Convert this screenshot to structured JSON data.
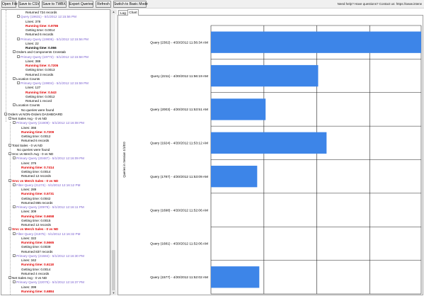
{
  "toolbar": {
    "buttons": [
      "Open File",
      "Save to CSV",
      "Save to TWBX",
      "Export Queries",
      "Refresh",
      "Switch to Basic Mode"
    ],
    "help_text": "Need help? Have questions? Contact us: https://www.interw"
  },
  "tree": {
    "rows": [
      {
        "text": "Returned 724 records",
        "indent": 34,
        "style": "",
        "box": ""
      },
      {
        "text": "Query (19631) - 5/1/2012 12:15:56 PM",
        "indent": 22,
        "style": "q",
        "box": "-"
      },
      {
        "text": "Lines: 378",
        "indent": 34,
        "style": "",
        "box": ""
      },
      {
        "text": "Running time: 0.9786",
        "indent": 34,
        "style": "rt",
        "box": ""
      },
      {
        "text": "Getting time: 0.0014",
        "indent": 34,
        "style": "",
        "box": ""
      },
      {
        "text": "Returned 6 records",
        "indent": 34,
        "style": "",
        "box": ""
      },
      {
        "text": "Primary Query (19806) - 5/1/2012 12:15:56 PM",
        "indent": 22,
        "style": "q",
        "box": "-"
      },
      {
        "text": "Lines: 22",
        "indent": 34,
        "style": "",
        "box": ""
      },
      {
        "text": "Running time: 0.066",
        "indent": 34,
        "style": "rt-black",
        "box": ""
      },
      {
        "text": "Orders and Components Crosstab",
        "indent": 16,
        "style": "",
        "box": "-"
      },
      {
        "text": "Primary Query (19772) - 5/1/2012 12:15:58 PM",
        "indent": 22,
        "style": "q",
        "box": "-"
      },
      {
        "text": "Lines: 388",
        "indent": 34,
        "style": "",
        "box": ""
      },
      {
        "text": "Running time: 0.7205",
        "indent": 34,
        "style": "rt",
        "box": ""
      },
      {
        "text": "Getting time: 0.0013",
        "indent": 34,
        "style": "",
        "box": ""
      },
      {
        "text": "Returned 3 records",
        "indent": 34,
        "style": "",
        "box": ""
      },
      {
        "text": "Location Counts",
        "indent": 16,
        "style": "",
        "box": "-"
      },
      {
        "text": "Primary Query (19804) - 5/1/2012 12:15:59 PM",
        "indent": 22,
        "style": "q",
        "box": "-"
      },
      {
        "text": "Lines: 127",
        "indent": 34,
        "style": "",
        "box": ""
      },
      {
        "text": "Running time: 0.543",
        "indent": 34,
        "style": "rt",
        "box": ""
      },
      {
        "text": "Getting time: 0.0012",
        "indent": 34,
        "style": "",
        "box": ""
      },
      {
        "text": "Returned 1 record",
        "indent": 34,
        "style": "",
        "box": ""
      },
      {
        "text": "Location Counts",
        "indent": 16,
        "style": "",
        "box": "-"
      },
      {
        "text": "No queries were found",
        "indent": 28,
        "style": "",
        "box": ""
      },
      {
        "text": "Orders vs NON-Orders DASHBOARD",
        "indent": 4,
        "style": "",
        "box": "-"
      },
      {
        "text": "Net Sales Avg - 0 vs ND",
        "indent": 10,
        "style": "",
        "box": "-"
      },
      {
        "text": "Primary Query (21909) - 5/1/2012 12:16:08 PM",
        "indent": 16,
        "style": "q",
        "box": "-"
      },
      {
        "text": "Lines: 366",
        "indent": 28,
        "style": "",
        "box": ""
      },
      {
        "text": "Running time: 0.7209",
        "indent": 28,
        "style": "rt",
        "box": ""
      },
      {
        "text": "Getting time: 0.0012",
        "indent": 28,
        "style": "",
        "box": ""
      },
      {
        "text": "Returned 6 records",
        "indent": 28,
        "style": "",
        "box": ""
      },
      {
        "text": "Total Sales - 0 vs ND",
        "indent": 10,
        "style": "",
        "box": "-"
      },
      {
        "text": "No queries were found",
        "indent": 22,
        "style": "",
        "box": ""
      },
      {
        "text": "Srvc vs Merch Avg - 0 vs ND",
        "indent": 10,
        "style": "",
        "box": "-"
      },
      {
        "text": "Primary Query (20487) - 5/1/2012 12:16:09 PM",
        "indent": 16,
        "style": "q",
        "box": "-"
      },
      {
        "text": "Lines: 376",
        "indent": 28,
        "style": "",
        "box": ""
      },
      {
        "text": "Running time: 0.7414",
        "indent": 28,
        "style": "rt",
        "box": ""
      },
      {
        "text": "Getting time: 0.0014",
        "indent": 28,
        "style": "",
        "box": ""
      },
      {
        "text": "Returned 12 records",
        "indent": 28,
        "style": "",
        "box": ""
      },
      {
        "text": "Srvc vs Merch Sales - 0 vs ND",
        "indent": 10,
        "style": "hd-red",
        "box": "-"
      },
      {
        "text": "Filter Query (21274) - 5/1/2012 12:16:12 PM",
        "indent": 16,
        "style": "q",
        "box": "-"
      },
      {
        "text": "Lines: 289",
        "indent": 28,
        "style": "",
        "box": ""
      },
      {
        "text": "Running time: 0.5731",
        "indent": 28,
        "style": "rt",
        "box": ""
      },
      {
        "text": "Getting time: 0.0042",
        "indent": 28,
        "style": "",
        "box": ""
      },
      {
        "text": "Returned 865 records",
        "indent": 28,
        "style": "",
        "box": ""
      },
      {
        "text": "Primary Query (20979) - 5/1/2012 12:16:11 PM",
        "indent": 16,
        "style": "q",
        "box": "-"
      },
      {
        "text": "Lines: 309",
        "indent": 28,
        "style": "",
        "box": ""
      },
      {
        "text": "Running time: 0.6658",
        "indent": 28,
        "style": "rt",
        "box": ""
      },
      {
        "text": "Getting time: 0.0015",
        "indent": 28,
        "style": "",
        "box": ""
      },
      {
        "text": "Returned 12 records",
        "indent": 28,
        "style": "",
        "box": ""
      },
      {
        "text": "Srvc vs Merch Sales - 0 vs ND",
        "indent": 10,
        "style": "hd-red",
        "box": "-"
      },
      {
        "text": "Filter Query (21975) - 5/1/2012 12:16:32 PM",
        "indent": 16,
        "style": "q",
        "box": "-"
      },
      {
        "text": "Lines: 322",
        "indent": 28,
        "style": "",
        "box": ""
      },
      {
        "text": "Running time: 0.5665",
        "indent": 28,
        "style": "rt",
        "box": ""
      },
      {
        "text": "Getting time: 0.0039",
        "indent": 28,
        "style": "",
        "box": ""
      },
      {
        "text": "Returned 837 records",
        "indent": 28,
        "style": "",
        "box": ""
      },
      {
        "text": "Primary Query (21584) - 5/1/2012 12:16:30 PM",
        "indent": 16,
        "style": "q",
        "box": "-"
      },
      {
        "text": "Lines: 342",
        "indent": 28,
        "style": "",
        "box": ""
      },
      {
        "text": "Running time: 0.6118",
        "indent": 28,
        "style": "rt",
        "box": ""
      },
      {
        "text": "Getting time: 0.0014",
        "indent": 28,
        "style": "",
        "box": ""
      },
      {
        "text": "Returned 4 records",
        "indent": 28,
        "style": "",
        "box": ""
      },
      {
        "text": "Net Sales Avg - 0 vs ND",
        "indent": 10,
        "style": "",
        "box": "-"
      },
      {
        "text": "Primary Query (22075) - 5/1/2012 12:16:37 PM",
        "indent": 16,
        "style": "q",
        "box": "-"
      },
      {
        "text": "Lines: 399",
        "indent": 28,
        "style": "",
        "box": ""
      },
      {
        "text": "Running time: 0.6884",
        "indent": 28,
        "style": "rt",
        "box": ""
      }
    ]
  },
  "tabs": [
    "Log",
    "Chart"
  ],
  "active_tab": "Chart",
  "chart_data": {
    "type": "bar",
    "orientation": "horizontal",
    "ylabel": "Queries in Session 1/1/0:0",
    "categories": [
      "Query (2302) - 4/20/2012 11:56:34 AM",
      "Query (2211) - 4/20/2012 11:56:19 AM",
      "Query (2003) - 4/20/2012 11:53:51 AM",
      "Query (1924) - 4/20/2012 11:53:12 AM",
      "Query (1787) - 4/20/2012 11:53:09 AM",
      "Query (1698) - 4/20/2012 11:52:06 AM",
      "Query (1681) - 4/20/2012 11:52:06 AM",
      "Query (1577) - 4/20/2012 11:52:02 AM"
    ],
    "values": [
      1.0,
      0.51,
      0.26,
      0.55,
      0.22,
      0.0,
      0.0,
      0.23
    ],
    "xlim": [
      0,
      1.0
    ],
    "bar_color": "#3d85e8",
    "grid": true
  }
}
